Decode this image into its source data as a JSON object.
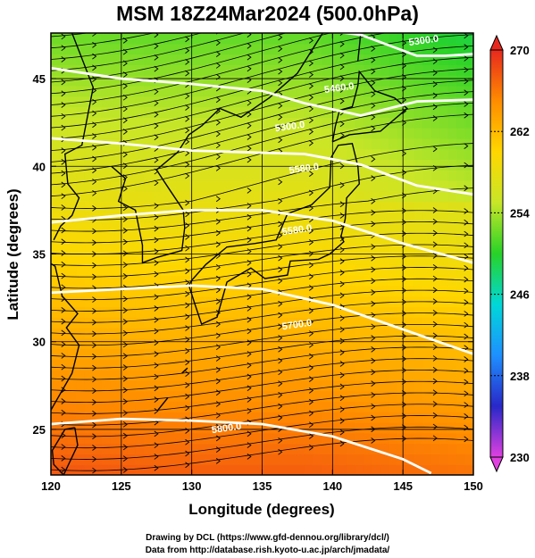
{
  "title": "MSM 18Z24Mar2024 (500.0hPa)",
  "footer": {
    "line1": "Drawing by DCL (https://www.gfd-dennou.org/library/dcl/)",
    "line2": "Data from http://database.rish.kyoto-u.ac.jp/arch/jmadata/"
  },
  "chart_data": {
    "type": "heatmap",
    "title": "MSM 18Z24Mar2024 (500.0hPa)",
    "xlabel": "Longitude (degrees)",
    "ylabel": "Latitude  (degrees)",
    "xlim": [
      120,
      150
    ],
    "ylim": [
      22.4,
      47.6
    ],
    "x_ticks": [
      120,
      125,
      130,
      135,
      140,
      145,
      150
    ],
    "x_tick_labels": [
      "120",
      "125",
      "130",
      "135",
      "140",
      "145",
      "150"
    ],
    "y_ticks": [
      25,
      30,
      35,
      40,
      45
    ],
    "y_tick_labels": [
      "25",
      "30",
      "35",
      "40",
      "45"
    ],
    "grid": true,
    "colorbar": {
      "min": 230,
      "max": 270,
      "ticks": [
        230,
        238,
        246,
        254,
        262,
        270
      ],
      "tick_labels": [
        "230",
        "238",
        "246",
        "254",
        "262",
        "270"
      ],
      "colors": [
        "#e040e0",
        "#2828c8",
        "#1e90ff",
        "#00d8d8",
        "#28d228",
        "#c8e628",
        "#ffd700",
        "#ff8c00",
        "#e8281e"
      ]
    },
    "contours": [
      {
        "label": "5300.0",
        "points": [
          [
            140,
            47.7
          ],
          [
            142,
            47.5
          ],
          [
            144,
            46.9
          ],
          [
            146,
            46.3
          ],
          [
            148,
            46.3
          ],
          [
            150,
            46.4
          ]
        ]
      },
      {
        "label": "5460.0",
        "points": [
          [
            120,
            45.6
          ],
          [
            125,
            45.0
          ],
          [
            130,
            44.7
          ],
          [
            135,
            44.3
          ],
          [
            138,
            43.6
          ],
          [
            142,
            42.9
          ],
          [
            146,
            43.7
          ],
          [
            150,
            43.8
          ]
        ]
      },
      {
        "label": "5300.0",
        "points": [
          [
            120,
            41.6
          ],
          [
            125,
            41.3
          ],
          [
            130,
            40.9
          ],
          [
            134,
            40.8
          ],
          [
            138,
            40.7
          ],
          [
            142,
            40.1
          ],
          [
            146,
            38.9
          ],
          [
            150,
            38.4
          ]
        ]
      },
      {
        "label": "5580.0",
        "points": [
          [
            120,
            36.8
          ],
          [
            125,
            37.2
          ],
          [
            130,
            37.5
          ],
          [
            135,
            37.5
          ],
          [
            140,
            36.9
          ],
          [
            145,
            35.6
          ],
          [
            150,
            34.5
          ]
        ]
      },
      {
        "label": "5700.0",
        "points": [
          [
            120,
            32.8
          ],
          [
            125,
            33.0
          ],
          [
            130,
            33.2
          ],
          [
            135,
            33.0
          ],
          [
            140,
            32.1
          ],
          [
            145,
            30.7
          ],
          [
            150,
            29.3
          ]
        ]
      },
      {
        "label": "5800.0",
        "points": [
          [
            120,
            25.3
          ],
          [
            125,
            25.6
          ],
          [
            130,
            25.5
          ],
          [
            135,
            25.3
          ],
          [
            140,
            24.6
          ],
          [
            145,
            23.3
          ],
          [
            147,
            22.5
          ]
        ]
      }
    ],
    "contour_label_positions": [
      {
        "label": "5300.0",
        "x": 146.5,
        "y": 47.0
      },
      {
        "label": "5460.0",
        "x": 140.5,
        "y": 44.3
      },
      {
        "label": "5300.0",
        "x": 137.0,
        "y": 42.1
      },
      {
        "label": "5580.0",
        "x": 138.0,
        "y": 39.7
      },
      {
        "label": "5580.0",
        "x": 137.5,
        "y": 36.2
      },
      {
        "label": "5700.0",
        "x": 137.5,
        "y": 30.8
      },
      {
        "label": "5800.0",
        "x": 132.5,
        "y": 24.9
      }
    ],
    "wind": {
      "direction": "west-to-east",
      "spacing_deg": 1.0
    }
  }
}
